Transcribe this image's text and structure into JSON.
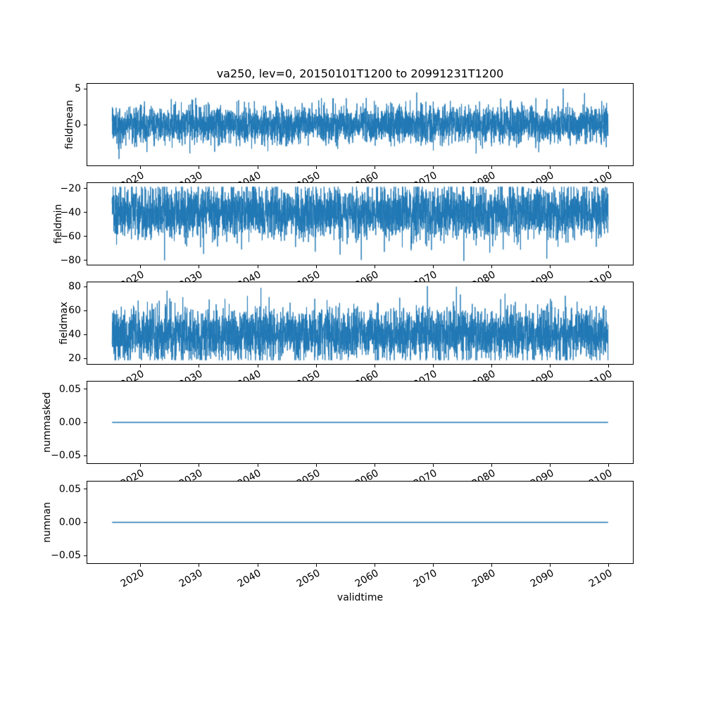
{
  "figure": {
    "title": "va250, lev=0, 20150101T1200 to 20991231T1200",
    "xlabel": "validtime",
    "background": "#ffffff",
    "line_color": "#1f77b4",
    "axes_color": "#000000"
  },
  "xaxis": {
    "lim": [
      2010.75,
      2104.25
    ],
    "ticks": [
      2020,
      2030,
      2040,
      2050,
      2060,
      2070,
      2080,
      2090,
      2100
    ],
    "tick_labels": [
      "2020",
      "2030",
      "2040",
      "2050",
      "2060",
      "2070",
      "2080",
      "2090",
      "2100"
    ],
    "tick_rotation_deg": 30
  },
  "chart_data": [
    {
      "type": "line",
      "name": "fieldmean",
      "ylabel": "fieldmean",
      "x_start": 2015.0,
      "x_end": 2100.0,
      "n_points": 4000,
      "ylim": [
        -5.83,
        5.83
      ],
      "yticks": [
        5,
        0
      ],
      "ytick_labels": [
        "5",
        "0"
      ],
      "signal": {
        "kind": "gaussian",
        "mean": 0,
        "std": 1.3,
        "clip_min": -5.3,
        "clip_max": 5.3,
        "seed": 1103,
        "spikes": [
          {
            "x": 2092.3,
            "v": 5.15
          },
          {
            "x": 2016.2,
            "v": -4.9
          }
        ]
      }
    },
    {
      "type": "line",
      "name": "fieldmin",
      "ylabel": "fieldmin",
      "x_start": 2015.0,
      "x_end": 2100.0,
      "n_points": 4000,
      "ylim": [
        -84.2,
        -14.8
      ],
      "yticks": [
        -20,
        -40,
        -60,
        -80
      ],
      "ytick_labels": [
        "−20",
        "−40",
        "−60",
        "−80"
      ],
      "signal": {
        "kind": "gaussian",
        "mean": -40,
        "std": 11,
        "clip_min": -81,
        "clip_max": -18,
        "seed": 2207,
        "spikes": [
          {
            "x": 2024.0,
            "v": -80.5
          },
          {
            "x": 2089.5,
            "v": -79.0
          }
        ]
      }
    },
    {
      "type": "line",
      "name": "fieldmax",
      "ylabel": "fieldmax",
      "x_start": 2015.0,
      "x_end": 2100.0,
      "n_points": 4000,
      "ylim": [
        14.8,
        84.2
      ],
      "yticks": [
        80,
        60,
        40,
        20
      ],
      "ytick_labels": [
        "80",
        "60",
        "40",
        "20"
      ],
      "signal": {
        "kind": "gaussian",
        "mean": 40,
        "std": 11,
        "clip_min": 18,
        "clip_max": 81,
        "seed": 3301,
        "spikes": [
          {
            "x": 2040.5,
            "v": 79.5
          },
          {
            "x": 2074.0,
            "v": 80.5
          }
        ]
      }
    },
    {
      "type": "line",
      "name": "nummasked",
      "ylabel": "nummasked",
      "x_start": 2015.0,
      "x_end": 2100.0,
      "n_points": 2,
      "ylim": [
        -0.0625,
        0.0625
      ],
      "yticks": [
        0.05,
        0.0,
        -0.05
      ],
      "ytick_labels": [
        "0.05",
        "0.00",
        "−0.05"
      ],
      "signal": {
        "kind": "constant",
        "value": 0.0
      }
    },
    {
      "type": "line",
      "name": "numnan",
      "ylabel": "numnan",
      "x_start": 2015.0,
      "x_end": 2100.0,
      "n_points": 2,
      "ylim": [
        -0.0625,
        0.0625
      ],
      "yticks": [
        0.05,
        0.0,
        -0.05
      ],
      "ytick_labels": [
        "0.05",
        "0.00",
        "−0.05"
      ],
      "signal": {
        "kind": "constant",
        "value": 0.0
      }
    }
  ]
}
